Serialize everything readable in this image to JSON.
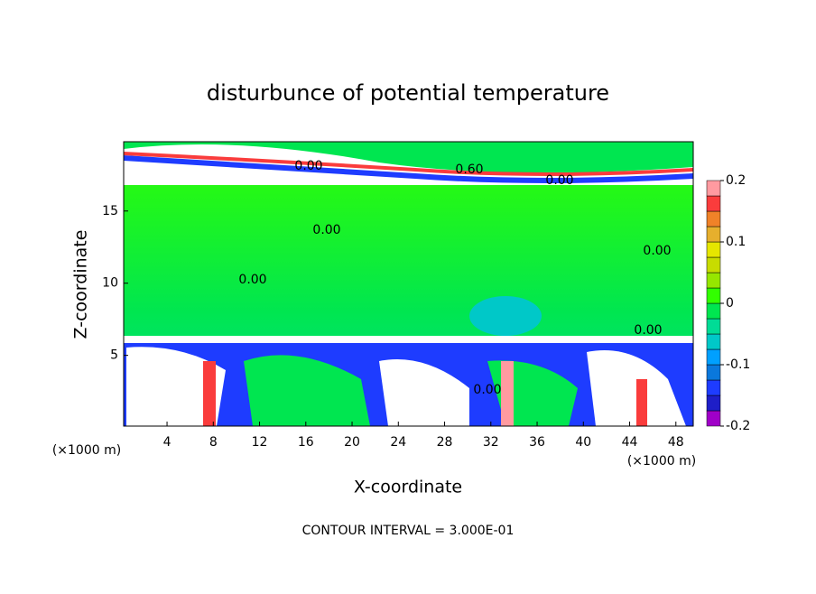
{
  "chart_data": {
    "type": "contour",
    "title": "disturbunce of potential temperature",
    "xlabel": "X-coordinate",
    "ylabel": "Z-coordinate",
    "xunit": "(×1000 m)",
    "footer": "CONTOUR INTERVAL = 3.000E-01",
    "xlim": [
      0.25,
      49.5
    ],
    "ylim": [
      0.1,
      19.8
    ],
    "xticks": [
      4,
      8,
      12,
      16,
      20,
      24,
      28,
      32,
      36,
      40,
      44,
      48
    ],
    "yticks": [
      5,
      10,
      15
    ],
    "contour_labels": [
      "0.00",
      "0.60",
      "0.00",
      "0.00",
      "0.00",
      "0.00",
      "0.00",
      "0.00"
    ],
    "colorbar": {
      "lim": [
        -0.2,
        0.2
      ],
      "ticks": [
        0.2,
        0.1,
        0,
        -0.1,
        -0.2
      ],
      "levels": [
        -0.2,
        -0.175,
        -0.15,
        -0.125,
        -0.1,
        -0.075,
        -0.05,
        -0.025,
        0,
        0.025,
        0.05,
        0.075,
        0.1,
        0.125,
        0.15,
        0.175
      ],
      "colors": [
        "#a000c8",
        "#1e1ec8",
        "#1e3cff",
        "#0a78dc",
        "#00a0ff",
        "#00c8c8",
        "#00dc96",
        "#00e650",
        "#32ff00",
        "#96e600",
        "#c8dc00",
        "#e6e600",
        "#e6af2d",
        "#f08228",
        "#fa3c3c",
        "#ff9aa0"
      ]
    }
  }
}
